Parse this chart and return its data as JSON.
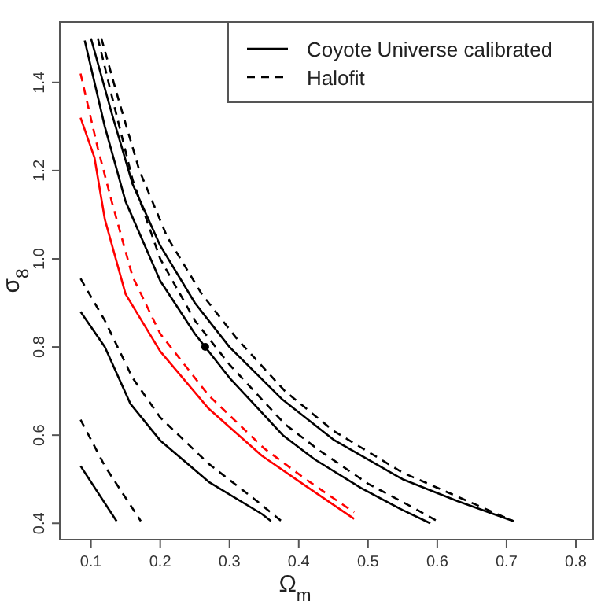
{
  "chart_data": {
    "type": "line",
    "xlabel": "Ω$_{m}$",
    "ylabel": "σ$_{8}$",
    "xlim": [
      0.055,
      0.825
    ],
    "ylim": [
      0.363,
      1.537
    ],
    "xticks": [
      0.1,
      0.2,
      0.3,
      0.4,
      0.5,
      0.6,
      0.7,
      0.8
    ],
    "yticks": [
      0.4,
      0.6,
      0.8,
      {
        "value": 1,
        "label": "1.0"
      },
      1.2,
      1.4
    ],
    "grid": false,
    "legend": "top right",
    "marker": "none",
    "series": [
      {
        "name": "Coyote Universe calibrated",
        "color": "#000000",
        "line_style": "solid",
        "x": [
          0.085,
          0.137
        ],
        "values": [
          0.53,
          0.405
        ]
      },
      {
        "name": "Halofit",
        "color": "#000000",
        "line_style": "dashed",
        "x": [
          0.085,
          0.12,
          0.172
        ],
        "values": [
          0.635,
          0.53,
          0.405
        ]
      },
      {
        "color": "#000000",
        "line_style": "solid",
        "x": [
          0.085,
          0.12,
          0.157,
          0.2,
          0.271,
          0.347,
          0.36
        ],
        "values": [
          0.88,
          0.8,
          0.671,
          0.588,
          0.493,
          0.421,
          0.405
        ]
      },
      {
        "color": "#000000",
        "line_style": "dashed",
        "x": [
          0.085,
          0.12,
          0.16,
          0.2,
          0.27,
          0.34,
          0.375
        ],
        "values": [
          0.955,
          0.86,
          0.73,
          0.64,
          0.535,
          0.45,
          0.405
        ]
      },
      {
        "color": "#ff0000",
        "line_style": "solid",
        "x": [
          0.085,
          0.105,
          0.12,
          0.15,
          0.2,
          0.27,
          0.347,
          0.407,
          0.48
        ],
        "values": [
          1.32,
          1.23,
          1.09,
          0.92,
          0.79,
          0.66,
          0.553,
          0.488,
          0.41
        ]
      },
      {
        "color": "#ff0000",
        "line_style": "dashed",
        "x": [
          0.085,
          0.11,
          0.13,
          0.16,
          0.2,
          0.27,
          0.35,
          0.41,
          0.48
        ],
        "values": [
          1.42,
          1.25,
          1.13,
          0.96,
          0.83,
          0.69,
          0.57,
          0.5,
          0.425
        ]
      },
      {
        "color": "#000000",
        "line_style": "solid",
        "x": [
          0.091,
          0.12,
          0.15,
          0.2,
          0.25,
          0.3,
          0.377,
          0.423,
          0.49,
          0.55,
          0.59
        ],
        "values": [
          1.495,
          1.3,
          1.13,
          0.95,
          0.83,
          0.73,
          0.6,
          0.545,
          0.48,
          0.43,
          0.4
        ]
      },
      {
        "color": "#000000",
        "line_style": "dashed",
        "x": [
          0.11,
          0.13,
          0.16,
          0.2,
          0.25,
          0.3,
          0.38,
          0.43,
          0.5,
          0.56,
          0.6
        ],
        "values": [
          1.5,
          1.37,
          1.18,
          1.0,
          0.86,
          0.76,
          0.625,
          0.565,
          0.49,
          0.44,
          0.405
        ]
      },
      {
        "color": "#000000",
        "line_style": "solid",
        "x": [
          0.1,
          0.13,
          0.16,
          0.2,
          0.25,
          0.3,
          0.377,
          0.45,
          0.55,
          0.63,
          0.71
        ],
        "values": [
          1.5,
          1.33,
          1.17,
          1.03,
          0.9,
          0.8,
          0.68,
          0.59,
          0.5,
          0.45,
          0.405
        ]
      },
      {
        "color": "#000000",
        "line_style": "dashed",
        "x": [
          0.115,
          0.14,
          0.17,
          0.21,
          0.26,
          0.31,
          0.38,
          0.45,
          0.55,
          0.63,
          0.71
        ],
        "values": [
          1.5,
          1.36,
          1.2,
          1.05,
          0.92,
          0.82,
          0.7,
          0.61,
          0.515,
          0.46,
          0.405
        ]
      },
      {
        "type": "scatter",
        "color": "#000000",
        "marker": "circle",
        "x": [
          0.265
        ],
        "values": [
          0.8
        ]
      }
    ]
  }
}
